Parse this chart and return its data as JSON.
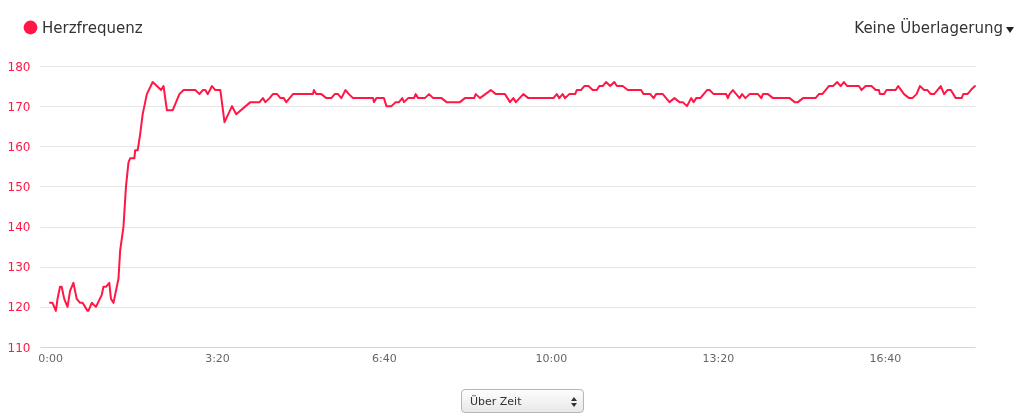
{
  "chart_data": {
    "type": "line",
    "x": [
      0,
      3,
      7,
      9,
      12,
      14,
      17,
      21,
      24,
      28,
      32,
      36,
      39,
      42,
      45,
      46,
      50,
      55,
      62,
      64,
      67,
      71,
      73,
      76,
      82,
      84,
      88,
      91,
      94,
      96,
      101,
      102,
      105,
      108,
      111,
      114,
      116,
      123,
      133,
      136,
      140,
      147,
      155,
      160,
      174,
      179,
      183,
      186,
      189,
      194,
      198,
      204,
      209,
      218,
      223,
      240,
      251,
      255,
      258,
      263,
      267,
      272,
      276,
      280,
      283,
      291,
      315,
      316,
      319,
      325,
      331,
      337,
      341,
      345,
      349,
      354,
      358,
      363,
      387,
      388,
      391,
      400,
      403,
      409,
      414,
      418,
      422,
      424,
      429,
      436,
      438,
      441,
      449,
      454,
      459,
      469,
      475,
      491,
      497,
      508,
      510,
      515,
      528,
      534,
      545,
      551,
      555,
      558,
      567,
      573,
      603,
      607,
      610,
      614,
      617,
      622,
      629,
      631,
      636,
      640,
      645,
      650,
      655,
      658,
      662,
      666,
      671,
      676,
      679,
      686,
      692,
      708,
      711,
      719,
      723,
      726,
      734,
      738,
      742,
      748,
      754,
      758,
      763,
      768,
      771,
      774,
      779,
      787,
      790,
      795,
      810,
      812,
      814,
      818,
      822,
      826,
      829,
      833,
      838,
      848,
      852,
      854,
      860,
      866,
      886,
      892,
      896,
      902,
      917,
      921,
      925,
      933,
      938,
      943,
      947,
      951,
      955,
      969,
      972,
      977,
      984,
      989,
      993,
      994,
      999,
      1002,
      1013,
      1016,
      1023,
      1029,
      1033,
      1038,
      1042,
      1047,
      1051,
      1055,
      1059,
      1067,
      1071,
      1075,
      1079,
      1085,
      1092,
      1094,
      1099,
      1103,
      1108
    ],
    "series": [
      {
        "name": "Herzfrequenz",
        "color": "#ff1745",
        "values": [
          121,
          121,
          119,
          122,
          125,
          125,
          122,
          120,
          124,
          126,
          122,
          121,
          121,
          120,
          119,
          119,
          121,
          120,
          123,
          125,
          125,
          126,
          122,
          121,
          127,
          134,
          140,
          150,
          156,
          157,
          157,
          159,
          159,
          163,
          168,
          171,
          173,
          176,
          174,
          175,
          169,
          169,
          173,
          174,
          174,
          173,
          174,
          174,
          173,
          175,
          174,
          174,
          166,
          170,
          168,
          171,
          171,
          172,
          171,
          172,
          173,
          173,
          172,
          172,
          171,
          173,
          173,
          174,
          173,
          173,
          172,
          172,
          173,
          173,
          172,
          174,
          173,
          172,
          172,
          171,
          172,
          172,
          170,
          170,
          171,
          171,
          172,
          171,
          172,
          172,
          173,
          172,
          172,
          173,
          172,
          172,
          171,
          171,
          172,
          172,
          173,
          172,
          174,
          173,
          173,
          171,
          172,
          171,
          173,
          172,
          172,
          173,
          172,
          173,
          172,
          173,
          173,
          174,
          174,
          175,
          175,
          174,
          174,
          175,
          175,
          176,
          175,
          176,
          175,
          175,
          174,
          174,
          173,
          173,
          172,
          173,
          173,
          172,
          171,
          172,
          171,
          171,
          170,
          172,
          171,
          172,
          172,
          174,
          174,
          173,
          173,
          172,
          173,
          174,
          173,
          172,
          173,
          172,
          173,
          173,
          172,
          173,
          173,
          172,
          172,
          171,
          171,
          172,
          172,
          173,
          173,
          175,
          175,
          176,
          175,
          176,
          175,
          175,
          174,
          175,
          175,
          174,
          174,
          173,
          173,
          174,
          174,
          175,
          173,
          172,
          172,
          173,
          175,
          174,
          174,
          173,
          173,
          175,
          173,
          174,
          174,
          172,
          172,
          173,
          173,
          174,
          175
        ]
      }
    ],
    "xlim": [
      -12,
      1108
    ],
    "xticks": [
      {
        "value": 0,
        "label": "0:00"
      },
      {
        "value": 200,
        "label": "3:20"
      },
      {
        "value": 400,
        "label": "6:40"
      },
      {
        "value": 600,
        "label": "10:00"
      },
      {
        "value": 800,
        "label": "13:20"
      },
      {
        "value": 1000,
        "label": "16:40"
      }
    ],
    "ylim": [
      110,
      180
    ],
    "yticks": [
      110,
      120,
      130,
      140,
      150,
      160,
      170,
      180
    ],
    "grid": "y",
    "legend": "top left",
    "marker": "none",
    "line_style": "solid",
    "annotations": [
      "Keine Überlagerung",
      "Über Zeit"
    ]
  }
}
